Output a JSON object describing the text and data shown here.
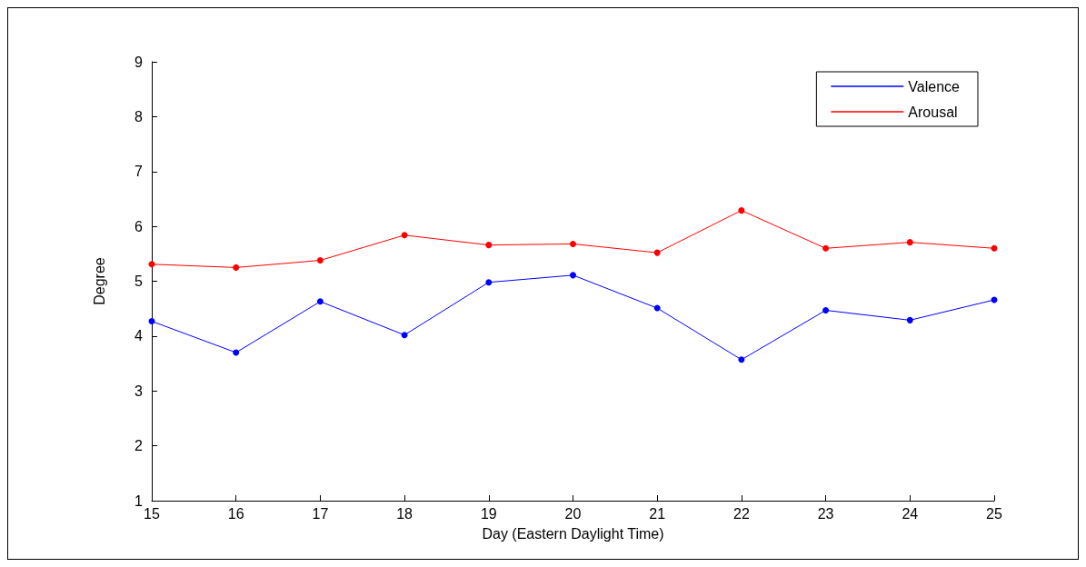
{
  "chart_data": {
    "type": "line",
    "xlabel": "Day (Eastern Daylight Time)",
    "ylabel": "Degree",
    "x": [
      15,
      16,
      17,
      18,
      19,
      20,
      21,
      22,
      23,
      24,
      25
    ],
    "series": [
      {
        "name": "Valence",
        "color": "#0000ff",
        "values": [
          4.27,
          3.7,
          4.63,
          4.02,
          4.98,
          5.11,
          4.51,
          3.57,
          4.47,
          4.29,
          4.66
        ]
      },
      {
        "name": "Arousal",
        "color": "#ff0000",
        "values": [
          5.31,
          5.25,
          5.38,
          5.84,
          5.66,
          5.68,
          5.52,
          6.29,
          5.6,
          5.71,
          5.6
        ]
      }
    ],
    "xlim": [
      15,
      25
    ],
    "xticks": [
      15,
      16,
      17,
      18,
      19,
      20,
      21,
      22,
      23,
      24,
      25
    ],
    "ylim": [
      1,
      9
    ],
    "yticks": [
      1,
      2,
      3,
      4,
      5,
      6,
      7,
      8,
      9
    ],
    "grid": false,
    "legend": "top right",
    "marker": "circle",
    "line_style": "solid"
  }
}
